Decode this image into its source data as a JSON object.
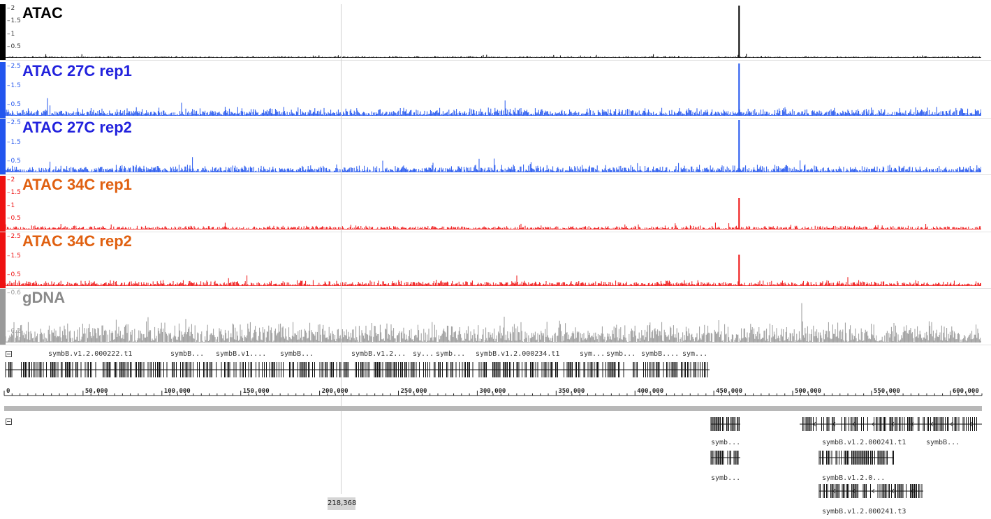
{
  "tracks": [
    {
      "id": "atac",
      "label": "ATAC",
      "label_color": "#000000",
      "signal_color": "#000000",
      "ticks": [
        "2",
        "1.5",
        "1",
        "0.5"
      ],
      "peak_value": 2,
      "noise_max": 0.08,
      "spike_pos": 466000
    },
    {
      "id": "atac27r1",
      "label": "ATAC 27C rep1",
      "label_color": "#2222dd",
      "signal_color": "#2255ee",
      "ticks": [
        "2.5",
        "1.5",
        "0.5"
      ],
      "peak_value": 2.5,
      "noise_max": 0.45,
      "spike_pos": 466000
    },
    {
      "id": "atac27r2",
      "label": "ATAC 27C rep2",
      "label_color": "#2222dd",
      "signal_color": "#2255ee",
      "ticks": [
        "2.5",
        "1.5",
        "0.5"
      ],
      "peak_value": 2.5,
      "noise_max": 0.4,
      "spike_pos": 466000
    },
    {
      "id": "atac34r1",
      "label": "ATAC 34C rep1",
      "label_color": "#e06010",
      "signal_color": "#ee1111",
      "ticks": [
        "2",
        "1.5",
        "1",
        "0.5"
      ],
      "peak_value": 1.4,
      "noise_max": 0.12,
      "spike_pos": 466000
    },
    {
      "id": "atac34r2",
      "label": "ATAC 34C rep2",
      "label_color": "#e06010",
      "signal_color": "#ee1111",
      "ticks": [
        "2.5",
        "1.5",
        "0.5"
      ],
      "peak_value": 1.7,
      "noise_max": 0.2,
      "spike_pos": 466000
    },
    {
      "id": "gdna",
      "label": "gDNA",
      "label_color": "#8a8a8a",
      "signal_color": "#9a9a9a",
      "ticks": [
        "0.6",
        "0.2"
      ],
      "peak_value": 0.5,
      "noise_max": 0.22,
      "spike_pos": null
    }
  ],
  "upper_genes": {
    "labels": [
      "symbB.v1.2.000222.t1",
      "symbB...",
      "symbB.v1....",
      "symbB...",
      "symbB.v1.2...",
      "sy...",
      "symb...",
      "symbB.v1.2.000234.t1",
      "sym...",
      "symb...",
      "symbB....",
      "sym..."
    ]
  },
  "ruler": {
    "labels": [
      "0",
      "50,000",
      "100,000",
      "150,000",
      "200,000",
      "250,000",
      "300,000",
      "350,000",
      "400,000",
      "450,000",
      "500,000",
      "550,000",
      "600,000"
    ],
    "max": 620000
  },
  "lower_genes": {
    "labels": [
      "symb...",
      "symbB.v1.2.000241.t1",
      "symbB...",
      "symb...",
      "symbB.v1.2.0...",
      "symbB.v1.2.000241.t3"
    ]
  },
  "cursor": {
    "position_label": "218,368"
  },
  "colors": {
    "divider": "#e2e2e2",
    "overview_bar": "#b8b8b8"
  }
}
